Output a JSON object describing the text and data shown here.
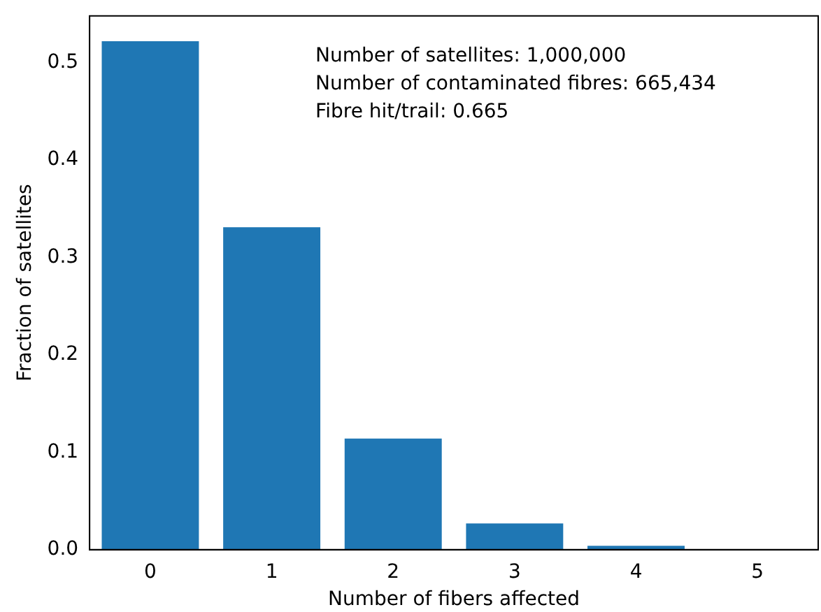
{
  "chart_data": {
    "type": "bar",
    "xlabel": "Number of fibers affected",
    "ylabel": "Fraction of satellites",
    "categories": [
      "0",
      "1",
      "2",
      "3",
      "4",
      "5"
    ],
    "values": [
      0.522,
      0.331,
      0.114,
      0.027,
      0.004,
      0.0
    ],
    "color": "#1f77b4",
    "ylim": [
      0,
      0.548
    ],
    "yticks": [
      {
        "value": 0,
        "label": "0.0"
      },
      0.1,
      0.2,
      0.3,
      0.4,
      0.5
    ],
    "grid": false,
    "legend": false,
    "annotations": [
      "Number of satellites: 1,000,000",
      "Number of contaminated fibres: 665,434",
      "Fibre hit/trail: 0.665"
    ]
  }
}
